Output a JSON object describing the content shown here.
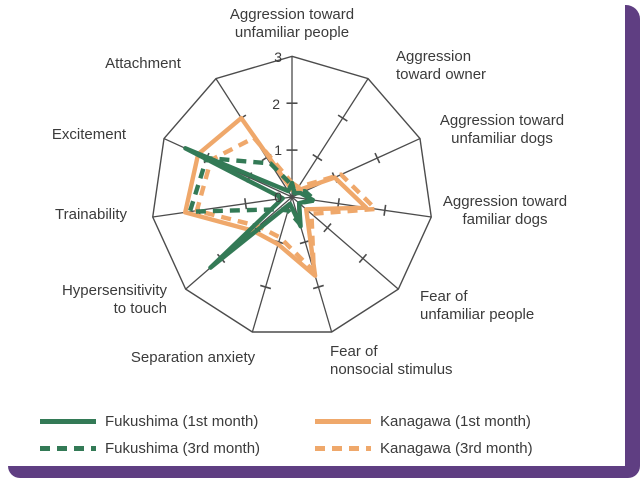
{
  "chart_data": {
    "type": "radar",
    "title": "",
    "categories": [
      "Aggression toward\nunfamiliar people",
      "Aggression\ntoward owner",
      "Aggression toward\nunfamiliar dogs",
      "Aggression toward\nfamiliar dogs",
      "Fear of\nunfamiliar people",
      "Fear of\nnonsocial stimulus",
      "Separation anxiety",
      "Hypersensitivity\nto touch",
      "Trainability",
      "Excitement",
      "Attachment"
    ],
    "series": [
      {
        "name": "Fukushima (1st month)",
        "style": "solid",
        "color": "#337a56",
        "values": [
          0.3,
          0.1,
          0.2,
          0.45,
          0.2,
          0.65,
          0.15,
          2.3,
          0.2,
          2.5,
          0.15
        ]
      },
      {
        "name": "Fukushima (3rd month)",
        "style": "dashed",
        "color": "#337a56",
        "values": [
          0.25,
          0.1,
          0.3,
          0.5,
          0.2,
          0.6,
          0.3,
          0.4,
          2.2,
          2.0,
          0.85
        ]
      },
      {
        "name": "Kanagawa (1st month)",
        "style": "solid",
        "color": "#efa86b",
        "values": [
          0.15,
          0.15,
          1.0,
          1.6,
          0.4,
          1.75,
          1.05,
          1.1,
          2.3,
          2.2,
          2.0
        ]
      },
      {
        "name": "Kanagawa (3rd month)",
        "style": "dashed",
        "color": "#efa86b",
        "values": [
          0.3,
          0.25,
          1.15,
          1.8,
          0.55,
          1.65,
          0.9,
          0.95,
          2.05,
          1.9,
          1.5
        ]
      }
    ],
    "r_max": 3,
    "r_ticks": [
      0,
      1,
      2,
      3
    ],
    "r_tick_labels": [
      "0",
      "1",
      "2",
      "3"
    ],
    "grid": "spokes with tick dashes, no rings",
    "legend_position": "bottom"
  },
  "colors": {
    "fukushima_green": "#337a56",
    "kanagawa_orange": "#efa86b",
    "axis_line": "#4c4c4c",
    "text": "#3b3b3b",
    "frame_purple": "#5f3e82",
    "background": "#ffffff"
  }
}
